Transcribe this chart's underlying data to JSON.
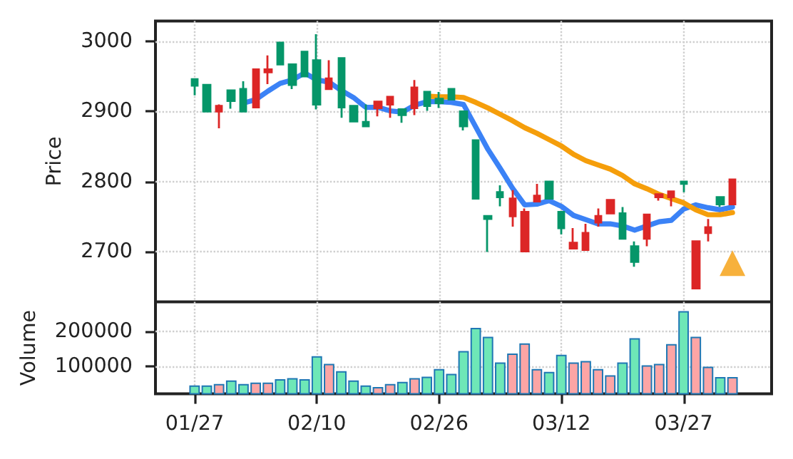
{
  "chart_data": [
    {
      "type": "candlestick",
      "ylabel": "Price",
      "categories": [
        null,
        null,
        null,
        null,
        null,
        null,
        null,
        null,
        null,
        null,
        null,
        null,
        null,
        null,
        null,
        null,
        null,
        null,
        null,
        null,
        null,
        null,
        null,
        null,
        null,
        null,
        null,
        null,
        null,
        null,
        null,
        null,
        null,
        null,
        null,
        null,
        null,
        null,
        null,
        null,
        null,
        null,
        null,
        null,
        null
      ],
      "ohlc": [
        [
          2946,
          2947,
          2923,
          2937
        ],
        [
          2938,
          2939,
          2899,
          2900
        ],
        [
          2900,
          2910,
          2876,
          2908
        ],
        [
          2930,
          2931,
          2904,
          2915
        ],
        [
          2932,
          2943,
          2899,
          2900
        ],
        [
          2906,
          2961,
          2905,
          2960
        ],
        [
          2956,
          2980,
          2939,
          2960
        ],
        [
          2998,
          2999,
          2966,
          2967
        ],
        [
          2967,
          2968,
          2932,
          2938
        ],
        [
          2985,
          2986,
          2949,
          2950
        ],
        [
          2973,
          3010,
          2903,
          2910
        ],
        [
          2932,
          2973,
          2931,
          2947
        ],
        [
          2976,
          2977,
          2891,
          2906
        ],
        [
          2908,
          2909,
          2885,
          2886
        ],
        [
          2885,
          2910,
          2878,
          2879
        ],
        [
          2905,
          2915,
          2893,
          2914
        ],
        [
          2910,
          2922,
          2891,
          2921
        ],
        [
          2903,
          2904,
          2884,
          2895
        ],
        [
          2905,
          2945,
          2895,
          2934
        ],
        [
          2928,
          2929,
          2901,
          2908
        ],
        [
          2918,
          2928,
          2905,
          2912
        ],
        [
          2932,
          2933,
          2916,
          2917
        ],
        [
          2900,
          2901,
          2873,
          2879
        ],
        [
          2859,
          2860,
          2775,
          2776
        ],
        [
          2751,
          2752,
          2700,
          2747
        ],
        [
          2785,
          2795,
          2765,
          2778
        ],
        [
          2751,
          2788,
          2736,
          2776
        ],
        [
          2701,
          2762,
          2700,
          2757
        ],
        [
          2772,
          2797,
          2771,
          2780
        ],
        [
          2800,
          2801,
          2775,
          2776
        ],
        [
          2757,
          2758,
          2725,
          2734
        ],
        [
          2705,
          2734,
          2704,
          2713
        ],
        [
          2703,
          2740,
          2702,
          2727
        ],
        [
          2742,
          2762,
          2736,
          2751
        ],
        [
          2755,
          2775,
          2754,
          2774
        ],
        [
          2755,
          2764,
          2718,
          2719
        ],
        [
          2708,
          2715,
          2679,
          2686
        ],
        [
          2719,
          2754,
          2708,
          2753
        ],
        [
          2778,
          2783,
          2773,
          2782
        ],
        [
          2778,
          2787,
          2765,
          2786
        ],
        [
          2800,
          2800,
          2785,
          2797
        ],
        [
          2648,
          2716,
          2647,
          2715
        ],
        [
          2727,
          2747,
          2715,
          2735
        ],
        [
          2778,
          2779,
          2764,
          2768
        ],
        [
          2768,
          2804,
          2767,
          2803
        ]
      ],
      "colors": [
        "#059669",
        "#059669",
        "#dc2626",
        "#059669",
        "#059669",
        "#dc2626",
        "#dc2626",
        "#059669",
        "#059669",
        "#059669",
        "#059669",
        "#dc2626",
        "#059669",
        "#059669",
        "#059669",
        "#dc2626",
        "#dc2626",
        "#059669",
        "#dc2626",
        "#059669",
        "#059669",
        "#059669",
        "#059669",
        "#059669",
        "#059669",
        "#059669",
        "#dc2626",
        "#dc2626",
        "#dc2626",
        "#059669",
        "#059669",
        "#dc2626",
        "#dc2626",
        "#dc2626",
        "#dc2626",
        "#059669",
        "#059669",
        "#dc2626",
        "#dc2626",
        "#dc2626",
        "#059669",
        "#dc2626",
        "#dc2626",
        "#059669",
        "#dc2626"
      ],
      "series": [
        {
          "type": "line",
          "color": "#3b82f6",
          "values": [
            null,
            null,
            null,
            null,
            2912,
            2917,
            2929,
            2940,
            2945,
            2955,
            2945,
            2942,
            2930,
            2920,
            2906,
            2906,
            2901,
            2899,
            2909,
            2914,
            2914,
            2913,
            2910,
            2878,
            2846,
            2819,
            2791,
            2767,
            2768,
            2773,
            2765,
            2752,
            2746,
            2740,
            2740,
            2737,
            2731,
            2737,
            2743,
            2745,
            2761,
            2767,
            2763,
            2760,
            2764
          ]
        },
        {
          "type": "line",
          "color": "#f59e0b",
          "values": [
            null,
            null,
            null,
            null,
            null,
            null,
            null,
            null,
            null,
            null,
            null,
            null,
            null,
            null,
            null,
            null,
            null,
            null,
            null,
            2922,
            2921,
            2921,
            2920,
            2913,
            2905,
            2896,
            2887,
            2877,
            2869,
            2860,
            2851,
            2839,
            2830,
            2824,
            2818,
            2809,
            2797,
            2790,
            2782,
            2776,
            2770,
            2760,
            2753,
            2753,
            2756
          ]
        },
        {
          "type": "scatter",
          "color": "#f59e0b",
          "marker": "triangle",
          "values": [
            null,
            null,
            null,
            null,
            null,
            null,
            null,
            null,
            null,
            null,
            null,
            null,
            null,
            null,
            null,
            null,
            null,
            null,
            null,
            null,
            null,
            null,
            null,
            null,
            null,
            null,
            null,
            null,
            null,
            null,
            null,
            null,
            null,
            null,
            null,
            null,
            null,
            null,
            null,
            null,
            null,
            null,
            null,
            null,
            2684
          ]
        }
      ],
      "ylim": [
        2629,
        3029
      ],
      "yticks": [
        2700,
        2800,
        2900,
        3000
      ],
      "grid": true,
      "tick_labels": "y"
    },
    {
      "type": "bar",
      "ylabel": "Volume",
      "categories": [
        "01/27",
        null,
        null,
        null,
        null,
        null,
        null,
        null,
        null,
        null,
        "02/10",
        null,
        null,
        null,
        null,
        null,
        null,
        null,
        null,
        null,
        "02/26",
        null,
        null,
        null,
        null,
        null,
        null,
        null,
        null,
        null,
        "03/12",
        null,
        null,
        null,
        null,
        null,
        null,
        null,
        null,
        null,
        "03/27",
        null,
        null,
        null,
        null
      ],
      "values": [
        45000,
        45000,
        49000,
        59000,
        49000,
        53000,
        53000,
        63000,
        66000,
        63000,
        129000,
        107000,
        86000,
        59000,
        45000,
        40000,
        49000,
        55000,
        66000,
        70000,
        92000,
        78000,
        144000,
        211000,
        185000,
        111000,
        137000,
        166000,
        92000,
        84000,
        133000,
        111000,
        115000,
        92000,
        74000,
        111000,
        181000,
        103000,
        107000,
        164000,
        259000,
        185000,
        99000,
        69000,
        69000
      ],
      "colors": [
        "#6ee7b7",
        "#6ee7b7",
        "#fca5a5",
        "#6ee7b7",
        "#6ee7b7",
        "#fca5a5",
        "#fca5a5",
        "#6ee7b7",
        "#6ee7b7",
        "#6ee7b7",
        "#6ee7b7",
        "#fca5a5",
        "#6ee7b7",
        "#6ee7b7",
        "#6ee7b7",
        "#fca5a5",
        "#fca5a5",
        "#6ee7b7",
        "#fca5a5",
        "#6ee7b7",
        "#6ee7b7",
        "#6ee7b7",
        "#6ee7b7",
        "#6ee7b7",
        "#6ee7b7",
        "#6ee7b7",
        "#fca5a5",
        "#fca5a5",
        "#fca5a5",
        "#6ee7b7",
        "#6ee7b7",
        "#fca5a5",
        "#fca5a5",
        "#fca5a5",
        "#fca5a5",
        "#6ee7b7",
        "#6ee7b7",
        "#fca5a5",
        "#fca5a5",
        "#fca5a5",
        "#6ee7b7",
        "#fca5a5",
        "#fca5a5",
        "#6ee7b7",
        "#fca5a5"
      ],
      "ylim": [
        20500,
        286000
      ],
      "yticks": [
        100000,
        200000
      ],
      "grid": true
    }
  ]
}
